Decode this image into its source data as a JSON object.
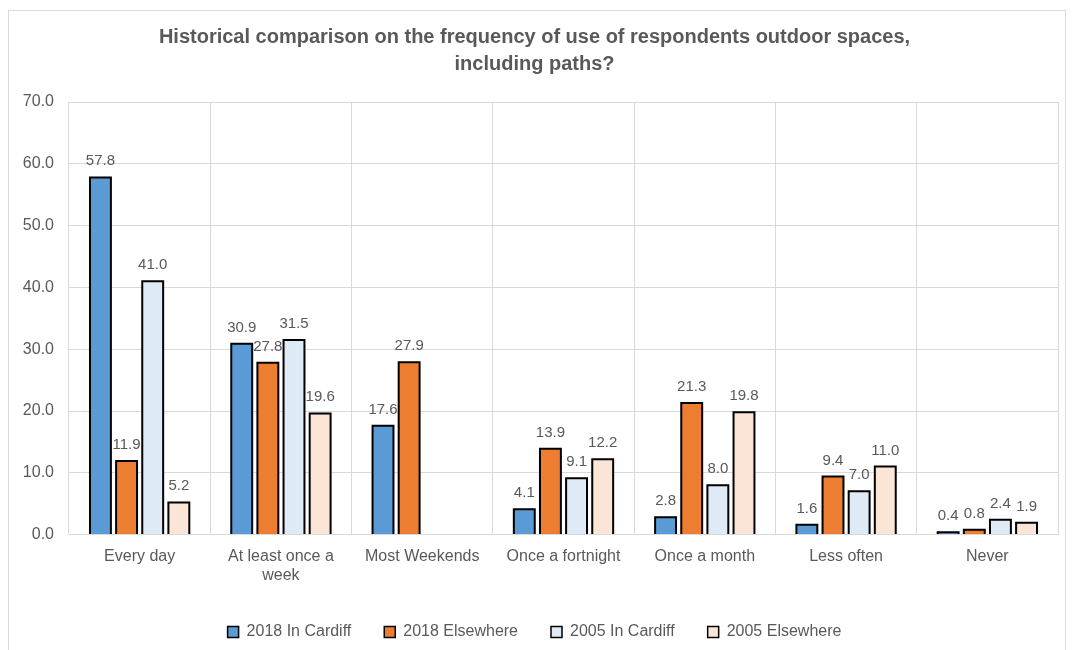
{
  "chart_data": {
    "type": "bar",
    "title": "Historical comparison on the frequency of use of respondents outdoor spaces, including paths?",
    "categories": [
      "Every day",
      "At least once a week",
      "Most Weekends",
      "Once a fortnight",
      "Once a month",
      "Less often",
      "Never"
    ],
    "series": [
      {
        "name": "2018 In Cardiff",
        "color": "#5b9bd5",
        "values": [
          57.8,
          30.9,
          17.6,
          4.1,
          2.8,
          1.6,
          0.4
        ],
        "value_labels": [
          "57.8",
          "30.9",
          "17.6",
          "4.1",
          "2.8",
          "1.6",
          "0.4"
        ]
      },
      {
        "name": "2018 Elsewhere",
        "color": "#ed7d31",
        "values": [
          11.9,
          27.8,
          27.9,
          13.9,
          21.3,
          9.4,
          0.8
        ],
        "value_labels": [
          "11.9",
          "27.8",
          "27.9",
          "13.9",
          "21.3",
          "9.4",
          "0.8"
        ]
      },
      {
        "name": "2005 In Cardiff",
        "color": "#deebf7",
        "values": [
          41.0,
          31.5,
          null,
          9.1,
          8.0,
          7.0,
          2.4
        ],
        "value_labels": [
          "41.0",
          "31.5",
          null,
          "9.1",
          "8.0",
          "7.0",
          "2.4"
        ]
      },
      {
        "name": "2005 Elsewhere",
        "color": "#fbe5d6",
        "values": [
          5.2,
          19.6,
          null,
          12.2,
          19.8,
          11.0,
          1.9
        ],
        "value_labels": [
          "5.2",
          "19.6",
          null,
          "12.2",
          "19.8",
          "11.0",
          "1.9"
        ]
      }
    ],
    "ylim": [
      0,
      70
    ],
    "yticks": [
      {
        "value": 0,
        "label": "0.0"
      },
      {
        "value": 10,
        "label": "10.0"
      },
      {
        "value": 20,
        "label": "20.0"
      },
      {
        "value": 30,
        "label": "30.0"
      },
      {
        "value": 40,
        "label": "40.0"
      },
      {
        "value": 50,
        "label": "50.0"
      },
      {
        "value": 60,
        "label": "60.0"
      },
      {
        "value": 70,
        "label": "70.0"
      }
    ],
    "grid": true,
    "legend": "bottom"
  }
}
